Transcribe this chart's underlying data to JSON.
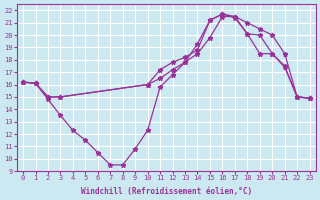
{
  "xlabel": "Windchill (Refroidissement éolien,°C)",
  "bg_color": "#cce8f0",
  "grid_color": "#ffffff",
  "line_color": "#993399",
  "xlim": [
    -0.5,
    23.5
  ],
  "ylim": [
    9,
    22.5
  ],
  "xticks": [
    0,
    1,
    2,
    3,
    4,
    5,
    6,
    7,
    8,
    9,
    10,
    11,
    12,
    13,
    14,
    15,
    16,
    17,
    18,
    19,
    20,
    21,
    22,
    23
  ],
  "yticks": [
    9,
    10,
    11,
    12,
    13,
    14,
    15,
    16,
    17,
    18,
    19,
    20,
    21,
    22
  ],
  "line1_x": [
    0,
    1,
    2,
    3,
    4,
    5,
    6,
    7,
    8,
    9,
    10,
    11,
    12,
    13,
    14,
    15,
    16,
    17,
    18,
    19,
    20,
    21,
    22,
    23
  ],
  "line1_y": [
    16.2,
    16.1,
    14.8,
    13.5,
    12.3,
    11.5,
    10.5,
    9.5,
    9.5,
    10.8,
    12.3,
    15.8,
    16.8,
    17.8,
    19.3,
    21.2,
    21.7,
    21.4,
    20.1,
    18.5,
    18.5,
    17.4,
    15.0,
    14.9
  ],
  "line2_x": [
    0,
    1,
    2,
    3,
    10,
    11,
    12,
    13,
    14,
    15,
    16,
    17,
    18,
    19,
    20,
    21,
    22,
    23
  ],
  "line2_y": [
    16.2,
    16.1,
    15.0,
    15.0,
    16.0,
    17.2,
    17.8,
    18.2,
    18.8,
    21.2,
    21.7,
    21.5,
    20.1,
    20.0,
    18.5,
    17.5,
    15.0,
    14.9
  ],
  "line3_x": [
    0,
    1,
    2,
    3,
    10,
    11,
    12,
    13,
    14,
    15,
    16,
    17,
    18,
    19,
    20,
    21,
    22,
    23
  ],
  "line3_y": [
    16.2,
    16.1,
    15.0,
    15.0,
    16.0,
    16.5,
    17.2,
    17.8,
    18.5,
    19.8,
    21.5,
    21.5,
    21.0,
    20.5,
    20.0,
    18.5,
    15.0,
    14.9
  ]
}
